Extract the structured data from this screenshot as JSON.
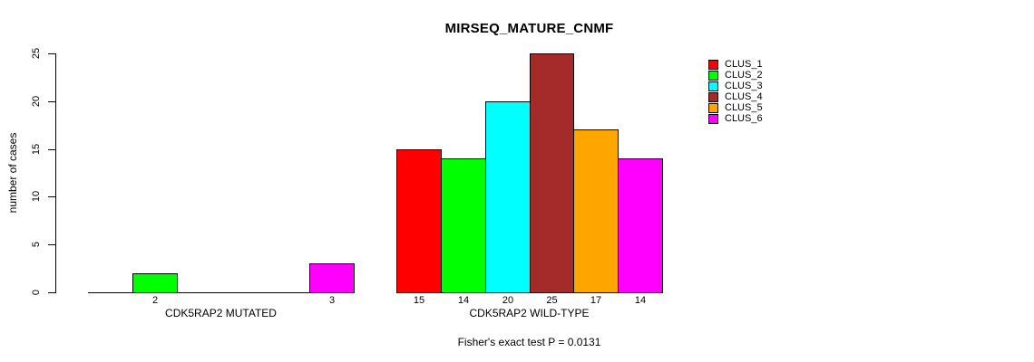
{
  "chart_data": {
    "type": "bar",
    "title": "MIRSEQ_MATURE_CNMF",
    "ylabel": "number of cases",
    "xlabel": "",
    "ylim": [
      0,
      25
    ],
    "yticks": [
      0,
      5,
      10,
      15,
      20,
      25
    ],
    "grid": false,
    "legend_position": "right",
    "categories": [
      "CDK5RAP2 MUTATED",
      "CDK5RAP2 WILD-TYPE"
    ],
    "series": [
      {
        "name": "CLUS_1",
        "color": "#FF0000",
        "values": [
          0,
          15
        ]
      },
      {
        "name": "CLUS_2",
        "color": "#00FF00",
        "values": [
          2,
          14
        ]
      },
      {
        "name": "CLUS_3",
        "color": "#00FFFF",
        "values": [
          0,
          20
        ]
      },
      {
        "name": "CLUS_4",
        "color": "#A52A2A",
        "values": [
          0,
          25
        ]
      },
      {
        "name": "CLUS_5",
        "color": "#FFA500",
        "values": [
          0,
          17
        ]
      },
      {
        "name": "CLUS_6",
        "color": "#FF00FF",
        "values": [
          3,
          14
        ]
      }
    ],
    "bar_value_labels_shown_when_nonzero": true,
    "annotation": "Fisher's exact test P = 0.0131"
  }
}
